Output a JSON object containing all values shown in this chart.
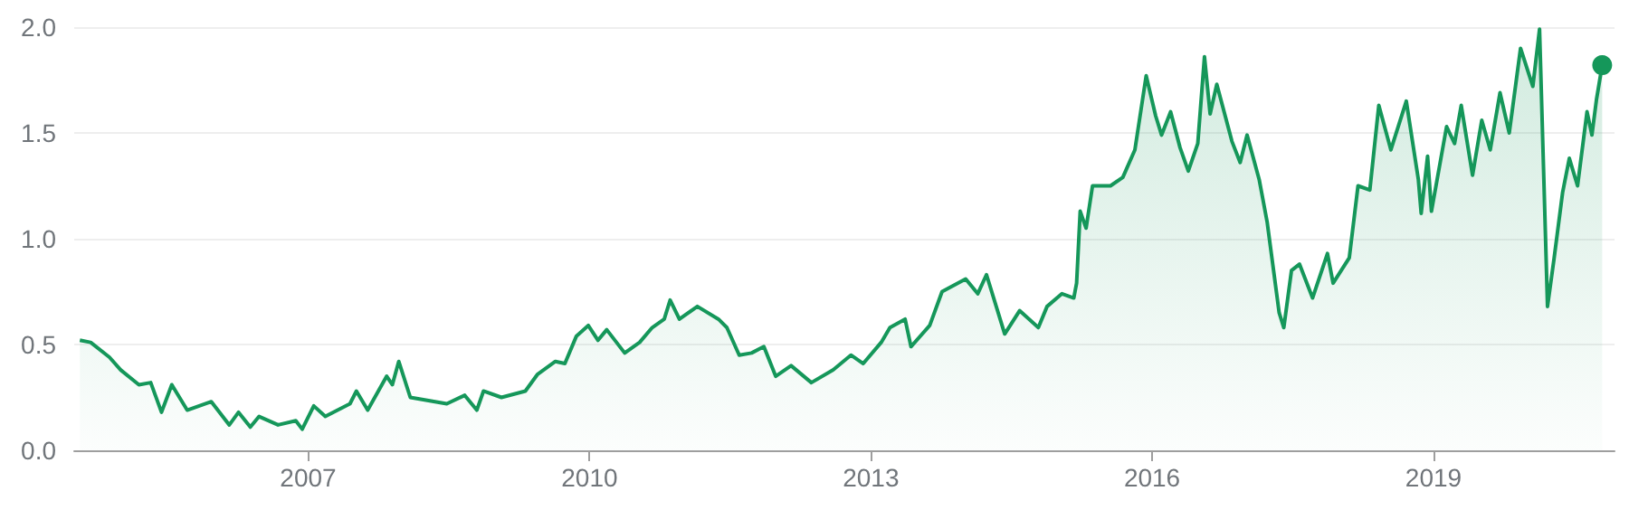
{
  "chart_data": {
    "type": "area",
    "xlim": [
      "2004-07-04",
      "2020-12-06"
    ],
    "xticks": [
      "2007",
      "2010",
      "2013",
      "2016",
      "2019"
    ],
    "ylim": [
      0,
      2
    ],
    "yticks": [
      {
        "value": 0,
        "label": "0.0"
      },
      {
        "value": 0.5,
        "label": "0.5"
      },
      {
        "value": 1,
        "label": "1.0"
      },
      {
        "value": 1.5,
        "label": "1.5"
      },
      {
        "value": 2,
        "label": "2.0"
      }
    ],
    "grid": "y",
    "series": [
      {
        "color": "#15975a",
        "x": [
          "2004-07-26",
          "2004-09-06",
          "2004-11-18",
          "2005-01-01",
          "2005-03-13",
          "2005-04-28",
          "2005-06-09",
          "2005-07-19",
          "2005-09-17",
          "2005-12-20",
          "2006-02-28",
          "2006-04-05",
          "2006-05-21",
          "2006-06-24",
          "2006-09-06",
          "2006-11-14",
          "2006-12-09",
          "2007-01-23",
          "2007-03-09",
          "2007-06-13",
          "2007-07-08",
          "2007-08-21",
          "2007-11-03",
          "2007-11-25",
          "2007-12-20",
          "2008-02-03",
          "2008-06-24",
          "2008-09-02",
          "2008-10-19",
          "2008-11-14",
          "2009-01-23",
          "2009-04-26",
          "2009-06-13",
          "2009-08-21",
          "2009-09-27",
          "2009-11-11",
          "2009-12-27",
          "2010-02-03",
          "2010-03-09",
          "2010-05-18",
          "2010-07-15",
          "2010-09-02",
          "2010-10-19",
          "2010-11-11",
          "2010-12-17",
          "2011-02-25",
          "2011-05-18",
          "2011-06-20",
          "2011-08-07",
          "2011-09-24",
          "2011-11-11",
          "2011-12-27",
          "2012-02-25",
          "2012-05-14",
          "2012-08-07",
          "2012-10-15",
          "2012-12-02",
          "2013-02-10",
          "2013-03-16",
          "2013-05-14",
          "2013-06-06",
          "2013-08-18",
          "2013-10-05",
          "2014-01-05",
          "2014-02-21",
          "2014-03-27",
          "2014-06-06",
          "2014-08-03",
          "2014-10-15",
          "2014-11-18",
          "2015-01-15",
          "2015-03-02",
          "2015-03-13",
          "2015-03-27",
          "2015-04-19",
          "2015-05-14",
          "2015-07-23",
          "2015-09-09",
          "2015-10-26",
          "2015-12-09",
          "2016-01-15",
          "2016-02-07",
          "2016-03-13",
          "2016-04-19",
          "2016-05-21",
          "2016-06-27",
          "2016-07-23",
          "2016-08-14",
          "2016-09-09",
          "2016-11-07",
          "2016-12-09",
          "2017-01-05",
          "2017-02-21",
          "2017-03-24",
          "2017-05-10",
          "2017-05-28",
          "2017-06-27",
          "2017-07-28",
          "2017-09-17",
          "2017-11-14",
          "2017-12-06",
          "2018-02-07",
          "2018-03-13",
          "2018-04-28",
          "2018-06-02",
          "2018-07-19",
          "2018-09-17",
          "2018-11-03",
          "2018-11-14",
          "2018-12-09",
          "2018-12-24",
          "2019-02-21",
          "2019-03-24",
          "2019-04-19",
          "2019-06-02",
          "2019-07-08",
          "2019-08-10",
          "2019-09-17",
          "2019-10-23",
          "2019-12-06",
          "2020-01-23",
          "2020-02-18",
          "2020-03-20",
          "2020-04-15",
          "2020-05-18",
          "2020-06-13",
          "2020-07-15",
          "2020-08-21",
          "2020-09-09",
          "2020-09-27",
          "2020-10-19"
        ],
        "values": [
          0.52,
          0.51,
          0.44,
          0.38,
          0.31,
          0.32,
          0.18,
          0.31,
          0.19,
          0.23,
          0.12,
          0.18,
          0.11,
          0.16,
          0.12,
          0.14,
          0.1,
          0.21,
          0.16,
          0.22,
          0.28,
          0.19,
          0.35,
          0.31,
          0.42,
          0.25,
          0.22,
          0.26,
          0.19,
          0.28,
          0.25,
          0.28,
          0.36,
          0.42,
          0.41,
          0.54,
          0.59,
          0.52,
          0.57,
          0.46,
          0.51,
          0.58,
          0.62,
          0.71,
          0.62,
          0.68,
          0.62,
          0.58,
          0.45,
          0.46,
          0.49,
          0.35,
          0.4,
          0.32,
          0.38,
          0.45,
          0.41,
          0.51,
          0.58,
          0.62,
          0.49,
          0.59,
          0.75,
          0.81,
          0.74,
          0.83,
          0.55,
          0.66,
          0.58,
          0.68,
          0.74,
          0.72,
          0.79,
          1.13,
          1.05,
          1.25,
          1.25,
          1.29,
          1.42,
          1.77,
          1.58,
          1.49,
          1.6,
          1.43,
          1.32,
          1.45,
          1.86,
          1.59,
          1.73,
          1.46,
          1.36,
          1.49,
          1.28,
          1.08,
          0.65,
          0.58,
          0.85,
          0.88,
          0.72,
          0.93,
          0.79,
          0.91,
          1.25,
          1.23,
          1.63,
          1.42,
          1.65,
          1.28,
          1.12,
          1.39,
          1.13,
          1.53,
          1.45,
          1.63,
          1.3,
          1.56,
          1.42,
          1.69,
          1.5,
          1.9,
          1.72,
          1.99,
          0.68,
          0.91,
          1.22,
          1.38,
          1.25,
          1.6,
          1.49,
          1.66,
          1.82
        ]
      },
      {
        "type": "scatter",
        "color": "#15975a",
        "marker": "circle",
        "x": [
          "2020-10-19"
        ],
        "values": [
          1.82
        ]
      }
    ]
  }
}
